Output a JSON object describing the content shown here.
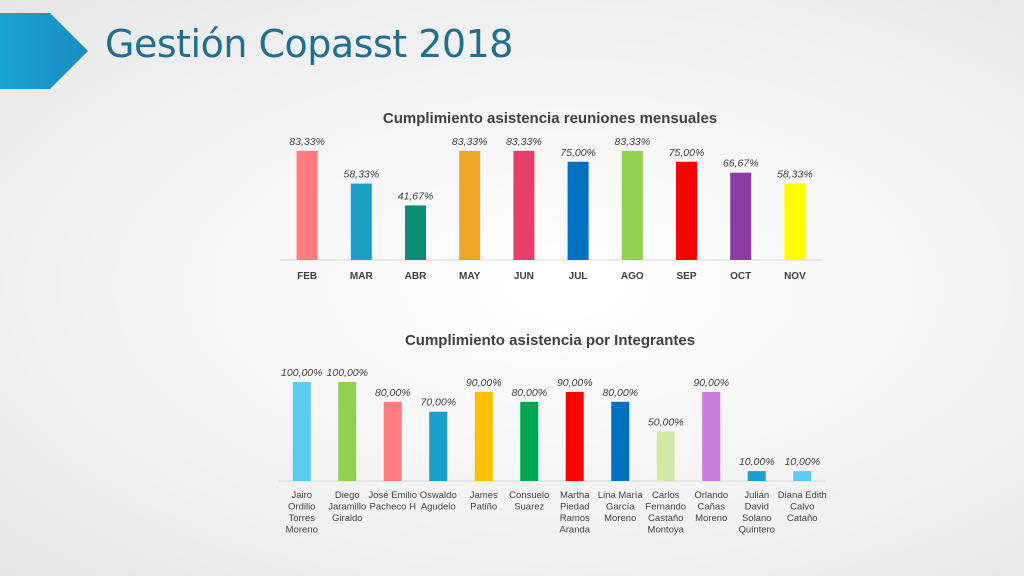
{
  "header": {
    "title": "Gestión Copasst 2018",
    "accent_color": "#1c9bd0"
  },
  "chart_data": [
    {
      "type": "bar",
      "title": "Cumplimiento asistencia reuniones mensuales",
      "categories": [
        "FEB",
        "MAR",
        "ABR",
        "MAY",
        "JUN",
        "JUL",
        "AGO",
        "SEP",
        "OCT",
        "NOV"
      ],
      "values": [
        83.33,
        58.33,
        41.67,
        83.33,
        83.33,
        75.0,
        83.33,
        75.0,
        66.67,
        58.33
      ],
      "value_labels": [
        "83,33%",
        "58,33%",
        "41,67%",
        "83,33%",
        "83,33%",
        "75,00%",
        "83,33%",
        "75,00%",
        "66,67%",
        "58,33%"
      ],
      "colors": [
        "#ff7c80",
        "#1aa0c8",
        "#0e8c7a",
        "#f0a624",
        "#e83e6c",
        "#0070c0",
        "#92d050",
        "#ff0000",
        "#8e3aa5",
        "#ffff00"
      ],
      "ylim": [
        0,
        100
      ],
      "grid": false,
      "legend": false
    },
    {
      "type": "bar",
      "title": "Cumplimiento asistencia por Integrantes",
      "categories": [
        "Jairo Ordilio Torres Moreno",
        "Diego Jaramillo Giraldo",
        "José Emilio Pacheco H",
        "Oswaldo Agudelo",
        "James Patiño",
        "Consuelo Suarez",
        "Martha Piedad Ramos Aranda",
        "Lina María García Moreno",
        "Carlos Fernando Castaño Montoya",
        "Orlando Cañas Moreno",
        "Julián David Solano Quintero",
        "Diana Edith Calvo Cataño"
      ],
      "category_lines": [
        [
          "Jairo",
          "Ordilio",
          "Torres",
          "Moreno"
        ],
        [
          "Diego",
          "Jaramillo",
          "Giraldo"
        ],
        [
          "José Emilio",
          "Pacheco H"
        ],
        [
          "Oswaldo",
          "Agudelo"
        ],
        [
          "James",
          "Patiño"
        ],
        [
          "Consuelo",
          "Suarez"
        ],
        [
          "Martha",
          "Piedad",
          "Ramos",
          "Aranda"
        ],
        [
          "Lina María",
          "García",
          "Moreno"
        ],
        [
          "Carlos",
          "Fernando",
          "Castaño",
          "Montoya"
        ],
        [
          "Orlando",
          "Cañas",
          "Moreno"
        ],
        [
          "Julián",
          "David",
          "Solano",
          "Quintero"
        ],
        [
          "Diana Edith",
          "Calvo",
          "Cataño"
        ]
      ],
      "values": [
        100,
        100,
        80,
        70,
        90,
        80,
        90,
        80,
        50,
        90,
        10,
        10
      ],
      "value_labels": [
        "100,00%",
        "100,00%",
        "80,00%",
        "70,00%",
        "90,00%",
        "80,00%",
        "90,00%",
        "80,00%",
        "50,00%",
        "90,00%",
        "10,00%",
        "10,00%"
      ],
      "colors": [
        "#5bcbef",
        "#92d050",
        "#ff7c80",
        "#1aa0c8",
        "#ffc000",
        "#00a651",
        "#ff0000",
        "#0070c0",
        "#d4e8a6",
        "#c77ddb",
        "#1aa0c8",
        "#5bcbef"
      ],
      "ylim": [
        0,
        100
      ],
      "grid": false,
      "legend": false
    }
  ]
}
